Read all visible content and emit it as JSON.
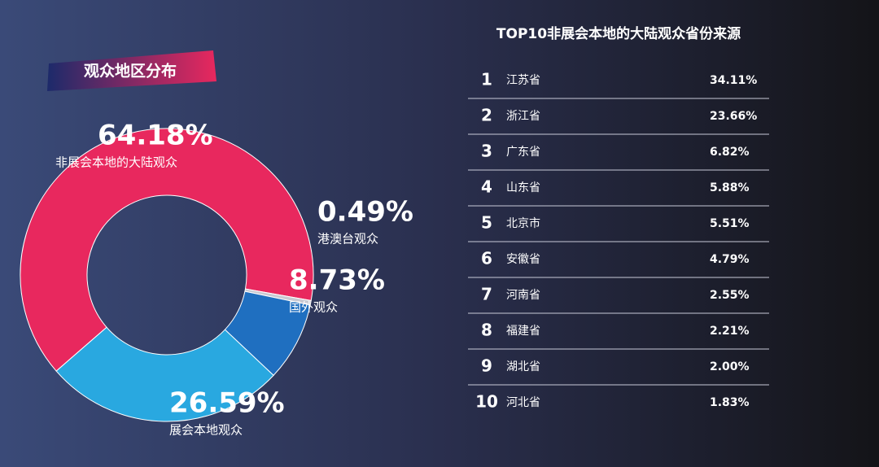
{
  "chart_data": {
    "type": "donut",
    "title": "观众地区分布",
    "categories": [
      "非展会本地的大陆观众",
      "港澳台观众",
      "国外观众",
      "展会本地观众"
    ],
    "values": [
      64.18,
      0.49,
      8.73,
      26.59
    ],
    "value_labels": [
      "64.18%",
      "0.49%",
      "8.73%",
      "26.59%"
    ],
    "colors": [
      "#e8285e",
      "#c9c9d2",
      "#1f6fc0",
      "#29a8e0"
    ]
  },
  "ranking": {
    "title": "TOP10非展会本地的大陆观众省份来源",
    "rows": [
      [
        1,
        "江苏省",
        "34.11%"
      ],
      [
        2,
        "浙江省",
        "23.66%"
      ],
      [
        3,
        "广东省",
        "6.82%"
      ],
      [
        4,
        "山东省",
        "5.88%"
      ],
      [
        5,
        "北京市",
        "5.51%"
      ],
      [
        6,
        "安徽省",
        "4.79%"
      ],
      [
        7,
        "河南省",
        "2.55%"
      ],
      [
        8,
        "福建省",
        "2.21%"
      ],
      [
        9,
        "湖北省",
        "2.00%"
      ],
      [
        10,
        "河北省",
        "1.83%"
      ]
    ]
  }
}
